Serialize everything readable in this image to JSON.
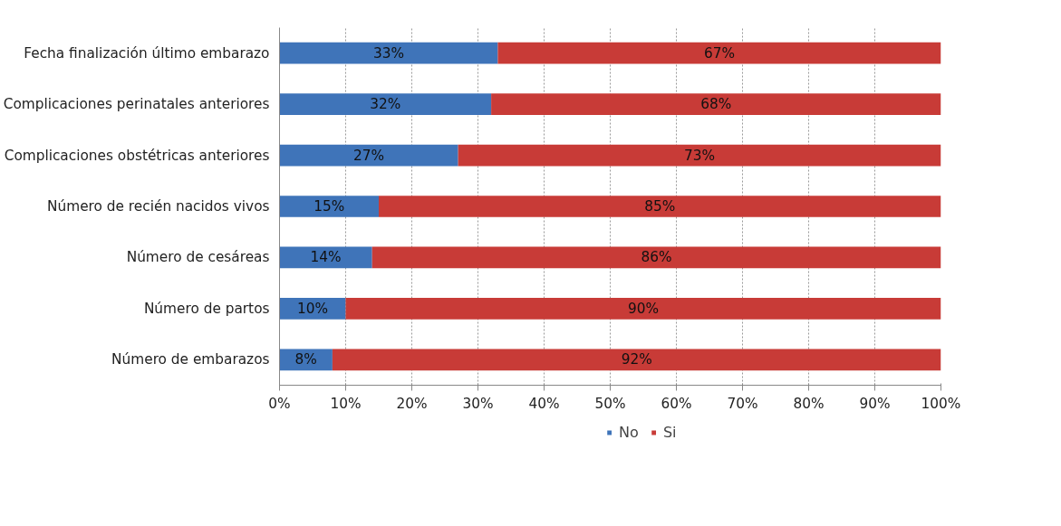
{
  "chart_data": {
    "type": "bar",
    "orientation": "horizontal",
    "stacked": true,
    "categories": [
      "Fecha finalización último embarazo",
      "Complicaciones perinatales anteriores",
      "Complicaciones obstétricas anteriores",
      "Número de recién nacidos vivos",
      "Número de cesáreas",
      "Número de partos",
      "Número de embarazos"
    ],
    "series": [
      {
        "name": "No",
        "color": "#3f74b9",
        "values": [
          33,
          32,
          27,
          15,
          14,
          10,
          8
        ],
        "value_labels": [
          "33%",
          "32%",
          "27%",
          "15%",
          "14%",
          "10%",
          "8%"
        ]
      },
      {
        "name": "Si",
        "color": "#c83b37",
        "values": [
          67,
          68,
          73,
          85,
          86,
          90,
          92
        ],
        "value_labels": [
          "67%",
          "68%",
          "73%",
          "85%",
          "86%",
          "90%",
          "92%"
        ]
      }
    ],
    "xlim": [
      0,
      100
    ],
    "xticks": [
      {
        "value": 0,
        "label": "0%"
      },
      {
        "value": 10,
        "label": "10%"
      },
      {
        "value": 20,
        "label": "20%"
      },
      {
        "value": 30,
        "label": "30%"
      },
      {
        "value": 40,
        "label": "40%"
      },
      {
        "value": 50,
        "label": "50%"
      },
      {
        "value": 60,
        "label": "60%"
      },
      {
        "value": 70,
        "label": "70%"
      },
      {
        "value": 80,
        "label": "80%"
      },
      {
        "value": 90,
        "label": "90%"
      },
      {
        "value": 100,
        "label": "100%"
      }
    ],
    "grid": "x",
    "legend": "bottom"
  }
}
